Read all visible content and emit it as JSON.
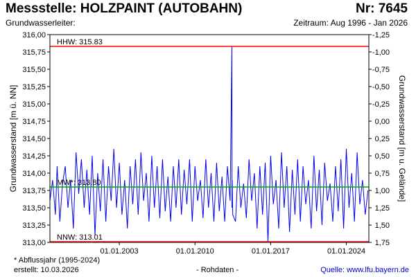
{
  "header": {
    "title": "Messstelle: HOLZPAINT (AUTOBAHN)",
    "station_number": "Nr: 7645",
    "aquifer": "Grundwasserleiter:",
    "period": "Zeitraum: Aug 1996 - Jan 2026"
  },
  "footer": {
    "footnote": "* Abflussjahr (1995-2024)",
    "created": "erstellt:  10.03.2026",
    "raw_data": "- Rohdaten -",
    "source": "Quelle: www.lfu.bayern.de"
  },
  "colors": {
    "series": "#0000ee",
    "limits": "#ff0000",
    "mean": "#00aa00",
    "frame": "#000000"
  },
  "chart_data": {
    "type": "line",
    "ylabel_left": "Grundwasserstand [m ü. NN]",
    "ylabel_right": "Grundwasserstand [m u. Gelände]",
    "ylim": [
      313.0,
      316.0
    ],
    "xlim": [
      "1996-08-01",
      "2026-01-31"
    ],
    "grid": false,
    "y_ticks_left": [
      "313,00",
      "313,25",
      "313,50",
      "313,75",
      "314,00",
      "314,25",
      "314,50",
      "314,75",
      "315,00",
      "315,25",
      "315,50",
      "315,75",
      "316,00"
    ],
    "y_ticks_right": [
      "-1,25",
      "-1,00",
      "-0,75",
      "-0,50",
      "-0,25",
      "0,00",
      "0,25",
      "0,50",
      "0,75",
      "1,00",
      "1,25",
      "1,50",
      "1,75"
    ],
    "y_tick_values_left": [
      313.0,
      313.25,
      313.5,
      313.75,
      314.0,
      314.25,
      314.5,
      314.75,
      315.0,
      315.25,
      315.5,
      315.75,
      316.0
    ],
    "y_tick_values_right": [
      -1.25,
      -1.0,
      -0.75,
      -0.5,
      -0.25,
      0.0,
      0.25,
      0.5,
      0.75,
      1.0,
      1.25,
      1.5,
      1.75
    ],
    "x_ticks": [
      {
        "label": "01.01.2003",
        "date": "2003-01-01"
      },
      {
        "label": "01.01.2010",
        "date": "2010-01-01"
      },
      {
        "label": "01.01.2017",
        "date": "2017-01-01"
      },
      {
        "label": "01.01.2024",
        "date": "2024-01-01"
      }
    ],
    "reference_lines": [
      {
        "label": "HHW: 315.83",
        "value": 315.83,
        "kind": "max"
      },
      {
        "label": "MW*: 313.80",
        "value": 313.8,
        "kind": "mean"
      },
      {
        "label": "NNW: 313.01",
        "value": 313.01,
        "kind": "min"
      }
    ],
    "series": [
      {
        "x": [
          "1996-08-01",
          "1996-11-01",
          "1997-02-01",
          "1997-04-01",
          "1997-07-01",
          "1997-10-01",
          "1998-01-01",
          "1998-04-01",
          "1998-07-01",
          "1998-10-01",
          "1999-01-01",
          "1999-04-01",
          "1999-07-01",
          "1999-10-01",
          "2000-01-01",
          "2000-04-01",
          "2000-07-01",
          "2000-10-01",
          "2001-01-01",
          "2001-04-01",
          "2001-07-01",
          "2001-10-01",
          "2002-01-01",
          "2002-04-01",
          "2002-07-01",
          "2002-10-01",
          "2003-01-01",
          "2003-04-01",
          "2003-07-01",
          "2003-10-01",
          "2004-01-01",
          "2004-04-01",
          "2004-07-01",
          "2004-10-01",
          "2005-01-01",
          "2005-04-01",
          "2005-07-01",
          "2005-10-01",
          "2006-01-01",
          "2006-04-01",
          "2006-07-01",
          "2006-10-01",
          "2007-01-01",
          "2007-04-01",
          "2007-07-01",
          "2007-10-01",
          "2008-01-01",
          "2008-04-01",
          "2008-07-01",
          "2008-10-01",
          "2009-01-01",
          "2009-04-01",
          "2009-07-01",
          "2009-10-01",
          "2010-01-01",
          "2010-04-01",
          "2010-07-01",
          "2010-10-01",
          "2011-01-01",
          "2011-04-01",
          "2011-07-01",
          "2011-10-01",
          "2012-01-01",
          "2012-04-01",
          "2012-07-01",
          "2012-10-01",
          "2013-01-01",
          "2013-04-01",
          "2013-06-01",
          "2013-06-05",
          "2013-06-10",
          "2013-07-01",
          "2013-10-01",
          "2014-01-01",
          "2014-04-01",
          "2014-07-01",
          "2014-10-01",
          "2015-01-01",
          "2015-04-01",
          "2015-07-01",
          "2015-10-01",
          "2016-01-01",
          "2016-04-01",
          "2016-07-01",
          "2016-10-01",
          "2017-01-01",
          "2017-04-01",
          "2017-07-01",
          "2017-10-01",
          "2018-01-01",
          "2018-04-01",
          "2018-07-01",
          "2018-10-01",
          "2019-01-01",
          "2019-04-01",
          "2019-07-01",
          "2019-10-01",
          "2020-01-01",
          "2020-04-01",
          "2020-07-01",
          "2020-10-01",
          "2021-01-01",
          "2021-04-01",
          "2021-07-01",
          "2021-10-01",
          "2022-01-01",
          "2022-04-01",
          "2022-07-01",
          "2022-10-01",
          "2023-01-01",
          "2023-04-01",
          "2023-07-01",
          "2023-10-01",
          "2024-01-01",
          "2024-04-01",
          "2024-07-01",
          "2024-10-01",
          "2025-01-01",
          "2025-04-01",
          "2025-07-01",
          "2025-10-01",
          "2026-01-01"
        ],
        "y": [
          313.6,
          313.9,
          313.4,
          314.1,
          313.3,
          313.85,
          314.1,
          313.5,
          313.9,
          313.2,
          314.3,
          313.7,
          314.2,
          313.5,
          314.05,
          313.4,
          314.25,
          313.1,
          314.0,
          313.45,
          314.2,
          313.3,
          314.1,
          313.6,
          314.35,
          313.5,
          314.15,
          313.4,
          313.9,
          313.2,
          314.1,
          313.55,
          314.2,
          313.4,
          314.3,
          313.6,
          314.0,
          313.3,
          314.25,
          313.5,
          314.1,
          313.35,
          314.2,
          313.45,
          313.95,
          313.3,
          314.1,
          313.5,
          314.2,
          313.4,
          314.05,
          313.55,
          314.2,
          313.3,
          314.1,
          313.6,
          313.9,
          313.35,
          314.2,
          313.5,
          314.0,
          313.3,
          314.15,
          313.45,
          313.95,
          313.3,
          314.1,
          313.6,
          315.83,
          313.5,
          313.9,
          313.4,
          313.3,
          314.1,
          313.5,
          313.85,
          313.35,
          314.2,
          313.6,
          314.0,
          313.2,
          314.1,
          313.4,
          314.15,
          313.01,
          314.25,
          313.55,
          313.9,
          313.2,
          314.3,
          313.5,
          314.1,
          313.15,
          314.05,
          313.4,
          314.2,
          313.3,
          314.1,
          313.55,
          313.9,
          313.2,
          314.25,
          313.45,
          314.05,
          313.25,
          314.15,
          313.6,
          313.85,
          313.3,
          314.1,
          313.45,
          314.2,
          313.2,
          314.35,
          313.5,
          314.0,
          313.3,
          314.3,
          313.55,
          313.9,
          313.4,
          313.75
        ]
      }
    ]
  }
}
